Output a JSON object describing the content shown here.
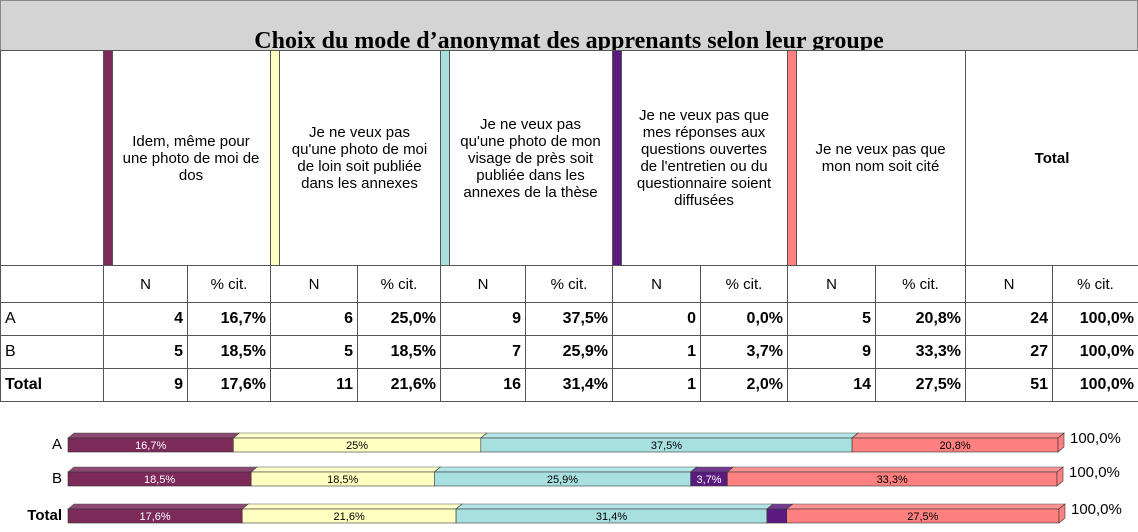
{
  "title": "Choix du mode d’anonymat des apprenants selon leur groupe",
  "table": {
    "groups": [
      {
        "label": "Idem, même pour une photo de moi de dos",
        "color": "#7b2a5a"
      },
      {
        "label": "Je ne veux pas qu'une photo de moi de loin soit publiée dans les annexes",
        "color": "#ffffc0"
      },
      {
        "label": "Je ne veux pas qu'une photo de mon visage de près soit publiée dans les annexes de la thèse",
        "color": "#a8e0e0"
      },
      {
        "label": "Je ne veux pas que mes réponses aux questions ouvertes de l'entretien ou du questionnaire soient diffusées",
        "color": "#5a1a80"
      },
      {
        "label": "Je ne veux pas que mon nom soit cité",
        "color": "#ff8080"
      },
      {
        "label": "Total"
      }
    ],
    "subheaders": [
      "N",
      "% cit.",
      "N",
      "% cit.",
      "N",
      "% cit.",
      "N",
      "% cit.",
      "N",
      "% cit.",
      "N",
      "% cit."
    ],
    "rows": [
      [
        "A",
        "4",
        "16,7%",
        "6",
        "25,0%",
        "9",
        "37,5%",
        "0",
        "0,0%",
        "5",
        "20,8%",
        "24",
        "100,0%"
      ],
      [
        "B",
        "5",
        "18,5%",
        "5",
        "18,5%",
        "7",
        "25,9%",
        "1",
        "3,7%",
        "9",
        "33,3%",
        "27",
        "100,0%"
      ],
      [
        "Total",
        "9",
        "17,6%",
        "11",
        "21,6%",
        "16",
        "31,4%",
        "1",
        "2,0%",
        "14",
        "27,5%",
        "51",
        "100,0%"
      ]
    ]
  },
  "chart_data": {
    "type": "bar",
    "orientation": "horizontal",
    "stacked": true,
    "categories": [
      "A",
      "B",
      "Total"
    ],
    "xlim": [
      0,
      100
    ],
    "series": [
      {
        "color": "#7b2a5a",
        "values": [
          16.7,
          18.5,
          17.6
        ],
        "value_labels": [
          "16,7%",
          "18,5%",
          "17,6%"
        ]
      },
      {
        "color": "#ffffc0",
        "values": [
          25,
          18.5,
          21.6
        ],
        "value_labels": [
          "25%",
          "18,5%",
          "21,6%"
        ]
      },
      {
        "color": "#a8e0e0",
        "values": [
          37.5,
          25.9,
          31.4
        ],
        "value_labels": [
          "37,5%",
          "25,9%",
          "31,4%"
        ]
      },
      {
        "color": "#5a1a80",
        "values": [
          0,
          3.7,
          2.0
        ],
        "value_labels": [
          null,
          "3,7%",
          null
        ]
      },
      {
        "color": "#ff8080",
        "values": [
          20.8,
          33.3,
          27.5
        ],
        "value_labels": [
          "20,8%",
          "33,3%",
          "27,5%"
        ]
      }
    ],
    "total_labels": [
      "100,0%",
      "100,0%",
      "100,0%"
    ]
  }
}
